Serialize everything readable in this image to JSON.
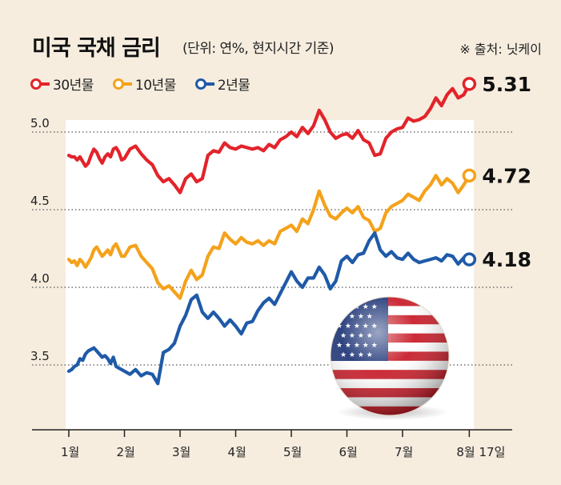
{
  "header": {
    "title": "미국 국채 금리",
    "subtitle": "(단위: 연%, 현지시간 기준)",
    "source": "※ 출처: 닛케이"
  },
  "chart_data": {
    "type": "line",
    "title": "미국 국채 금리",
    "subtitle": "(단위: 연%, 현지시간 기준)",
    "ylim": [
      3.0,
      5.5
    ],
    "y_ticks": [
      3.5,
      4.0,
      4.5,
      5.0
    ],
    "y_tick_labels": [
      "3.5",
      "4.0",
      "4.5",
      "5.0"
    ],
    "x_tick_labels": [
      "1월",
      "2월",
      "3월",
      "4월",
      "5월",
      "6월",
      "7월",
      "8월 17일"
    ],
    "x_tick_positions": [
      0,
      1,
      2,
      3,
      4,
      5,
      6,
      7.2
    ],
    "grid": "horizontal dotted",
    "legend_position": "top-left",
    "series": [
      {
        "name": "30년물",
        "color": "#e3232a",
        "end_label": "5.31",
        "x": [
          0,
          0.05,
          0.1,
          0.15,
          0.2,
          0.25,
          0.3,
          0.35,
          0.4,
          0.45,
          0.5,
          0.55,
          0.6,
          0.65,
          0.7,
          0.75,
          0.8,
          0.85,
          0.9,
          0.95,
          1.0,
          1.1,
          1.2,
          1.3,
          1.4,
          1.5,
          1.6,
          1.7,
          1.8,
          1.9,
          2.0,
          2.1,
          2.2,
          2.3,
          2.4,
          2.5,
          2.6,
          2.7,
          2.8,
          2.9,
          3.0,
          3.1,
          3.2,
          3.3,
          3.4,
          3.5,
          3.6,
          3.7,
          3.8,
          3.9,
          4.0,
          4.1,
          4.2,
          4.3,
          4.4,
          4.5,
          4.6,
          4.7,
          4.8,
          4.9,
          5.0,
          5.1,
          5.2,
          5.3,
          5.4,
          5.5,
          5.6,
          5.7,
          5.8,
          5.9,
          6.0,
          6.1,
          6.2,
          6.3,
          6.4,
          6.5,
          6.6,
          6.7,
          6.8,
          6.9,
          7.0,
          7.1,
          7.2
        ],
        "values": [
          4.85,
          4.84,
          4.84,
          4.82,
          4.84,
          4.81,
          4.78,
          4.8,
          4.85,
          4.89,
          4.87,
          4.83,
          4.8,
          4.84,
          4.86,
          4.84,
          4.89,
          4.9,
          4.87,
          4.82,
          4.83,
          4.89,
          4.91,
          4.86,
          4.82,
          4.79,
          4.72,
          4.68,
          4.7,
          4.66,
          4.61,
          4.7,
          4.73,
          4.68,
          4.7,
          4.85,
          4.88,
          4.87,
          4.93,
          4.9,
          4.89,
          4.91,
          4.9,
          4.89,
          4.9,
          4.88,
          4.92,
          4.9,
          4.95,
          4.97,
          5.0,
          4.97,
          5.03,
          4.99,
          5.04,
          5.14,
          5.08,
          5.0,
          4.96,
          4.98,
          4.99,
          4.96,
          5.01,
          4.95,
          4.93,
          4.85,
          4.86,
          4.96,
          5.0,
          5.02,
          5.03,
          5.09,
          5.07,
          5.08,
          5.1,
          5.15,
          5.22,
          5.17,
          5.24,
          5.28,
          5.22,
          5.24,
          5.31
        ]
      },
      {
        "name": "10년물",
        "color": "#f4a21b",
        "end_label": "4.72",
        "x": [
          0,
          0.05,
          0.1,
          0.15,
          0.2,
          0.25,
          0.3,
          0.35,
          0.4,
          0.45,
          0.5,
          0.55,
          0.6,
          0.65,
          0.7,
          0.75,
          0.8,
          0.85,
          0.9,
          0.95,
          1.0,
          1.1,
          1.2,
          1.3,
          1.4,
          1.5,
          1.6,
          1.7,
          1.8,
          1.9,
          2.0,
          2.1,
          2.2,
          2.3,
          2.4,
          2.5,
          2.6,
          2.7,
          2.8,
          2.9,
          3.0,
          3.1,
          3.2,
          3.3,
          3.4,
          3.5,
          3.6,
          3.7,
          3.8,
          3.9,
          4.0,
          4.1,
          4.2,
          4.3,
          4.4,
          4.5,
          4.6,
          4.7,
          4.8,
          4.9,
          5.0,
          5.1,
          5.2,
          5.3,
          5.4,
          5.5,
          5.6,
          5.7,
          5.8,
          5.9,
          6.0,
          6.1,
          6.2,
          6.3,
          6.4,
          6.5,
          6.6,
          6.7,
          6.8,
          6.9,
          7.0,
          7.1,
          7.2
        ],
        "values": [
          4.18,
          4.16,
          4.17,
          4.14,
          4.18,
          4.16,
          4.13,
          4.16,
          4.19,
          4.24,
          4.26,
          4.23,
          4.2,
          4.22,
          4.24,
          4.21,
          4.26,
          4.28,
          4.24,
          4.2,
          4.2,
          4.26,
          4.27,
          4.2,
          4.16,
          4.12,
          4.03,
          3.99,
          4.01,
          3.97,
          3.93,
          4.04,
          4.11,
          4.05,
          4.08,
          4.2,
          4.26,
          4.25,
          4.35,
          4.31,
          4.28,
          4.32,
          4.29,
          4.28,
          4.3,
          4.27,
          4.3,
          4.28,
          4.36,
          4.38,
          4.4,
          4.36,
          4.44,
          4.41,
          4.5,
          4.62,
          4.53,
          4.46,
          4.44,
          4.48,
          4.51,
          4.48,
          4.52,
          4.45,
          4.43,
          4.36,
          4.38,
          4.48,
          4.52,
          4.54,
          4.56,
          4.6,
          4.58,
          4.56,
          4.62,
          4.66,
          4.72,
          4.66,
          4.7,
          4.67,
          4.61,
          4.66,
          4.72
        ]
      },
      {
        "name": "2년물",
        "color": "#1f5aa8",
        "end_label": "4.18",
        "x": [
          0,
          0.05,
          0.1,
          0.15,
          0.2,
          0.25,
          0.3,
          0.35,
          0.4,
          0.45,
          0.5,
          0.55,
          0.6,
          0.65,
          0.7,
          0.75,
          0.8,
          0.85,
          0.9,
          0.95,
          1.0,
          1.1,
          1.2,
          1.3,
          1.4,
          1.5,
          1.6,
          1.7,
          1.8,
          1.9,
          2.0,
          2.1,
          2.2,
          2.3,
          2.4,
          2.5,
          2.6,
          2.7,
          2.8,
          2.9,
          3.0,
          3.1,
          3.2,
          3.3,
          3.4,
          3.5,
          3.6,
          3.7,
          3.8,
          3.9,
          4.0,
          4.1,
          4.2,
          4.3,
          4.4,
          4.5,
          4.6,
          4.7,
          4.8,
          4.9,
          5.0,
          5.1,
          5.2,
          5.3,
          5.4,
          5.5,
          5.6,
          5.7,
          5.8,
          5.9,
          6.0,
          6.1,
          6.2,
          6.3,
          6.4,
          6.5,
          6.6,
          6.7,
          6.8,
          6.9,
          7.0,
          7.1,
          7.2
        ],
        "values": [
          3.46,
          3.47,
          3.49,
          3.5,
          3.54,
          3.53,
          3.57,
          3.59,
          3.6,
          3.61,
          3.59,
          3.57,
          3.55,
          3.56,
          3.54,
          3.51,
          3.55,
          3.49,
          3.48,
          3.47,
          3.46,
          3.44,
          3.47,
          3.43,
          3.45,
          3.44,
          3.38,
          3.58,
          3.6,
          3.64,
          3.75,
          3.82,
          3.92,
          3.95,
          3.84,
          3.8,
          3.84,
          3.8,
          3.75,
          3.79,
          3.75,
          3.7,
          3.77,
          3.78,
          3.85,
          3.9,
          3.93,
          3.89,
          3.96,
          4.03,
          4.1,
          4.04,
          4.0,
          4.06,
          4.06,
          4.13,
          4.08,
          3.99,
          4.04,
          4.17,
          4.2,
          4.16,
          4.21,
          4.22,
          4.3,
          4.35,
          4.24,
          4.2,
          4.23,
          4.19,
          4.18,
          4.22,
          4.18,
          4.16,
          4.17,
          4.18,
          4.19,
          4.17,
          4.21,
          4.2,
          4.15,
          4.19,
          4.18
        ]
      }
    ]
  },
  "flag": {
    "name": "us-flag-icon"
  }
}
